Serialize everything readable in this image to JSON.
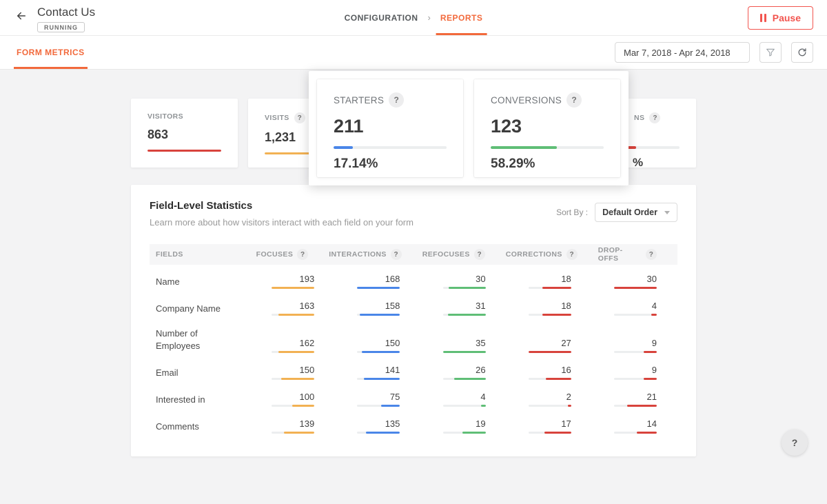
{
  "colors": {
    "accent_orange": "#f2693b",
    "pause_red": "#f2544e",
    "bar_red": "#d8433c",
    "bar_amber": "#f2b153",
    "bar_blue": "#4a86e8",
    "bar_green": "#5fbe76"
  },
  "icons": {
    "back": "arrow-left",
    "breadcrumb_separator": "chevron-right",
    "pause": "pause-bars",
    "filter": "funnel",
    "refresh": "refresh-arrow",
    "sort_caret": "caret-down",
    "help": "?"
  },
  "header": {
    "title": "Contact Us",
    "status_badge": "RUNNING",
    "breadcrumb": [
      {
        "label": "CONFIGURATION",
        "active": false
      },
      {
        "label": "REPORTS",
        "active": true
      }
    ],
    "pause_button": "Pause"
  },
  "toolbar": {
    "tab": "FORM METRICS",
    "date_range": "Mar 7, 2018 - Apr 24, 2018"
  },
  "stat_cards": {
    "visitors": {
      "label": "VISITORS",
      "value": "863",
      "has_help": false,
      "bar_color": "#d8433c",
      "bar_fill": 1
    },
    "visits": {
      "label": "VISITS",
      "value": "1,231",
      "has_help": true,
      "bar_color": "#f2b153",
      "bar_fill": 1
    },
    "partial": {
      "label_fragment": "NS",
      "percent_fragment": "%",
      "has_help": true,
      "bar_color": "#d8433c",
      "bar_fill": 0.41
    }
  },
  "popover_cards": [
    {
      "label": "STARTERS",
      "value": "211",
      "percent": "17.14%",
      "bar_color": "#4a86e8",
      "bar_fill": 0.1714
    },
    {
      "label": "CONVERSIONS",
      "value": "123",
      "percent": "58.29%",
      "bar_color": "#5fbe76",
      "bar_fill": 0.5829
    }
  ],
  "field_stats": {
    "title": "Field-Level Statistics",
    "subtitle": "Learn more about how visitors interact with each field on your form",
    "sort_by_label": "Sort By :",
    "sort_by_value": "Default Order",
    "columns": [
      {
        "label": "FIELDS",
        "help": false
      },
      {
        "label": "FOCUSES",
        "help": true
      },
      {
        "label": "INTERACTIONS",
        "help": true
      },
      {
        "label": "REFOCUSES",
        "help": true
      },
      {
        "label": "CORRECTIONS",
        "help": true
      },
      {
        "label": "DROP-OFFS",
        "help": true
      }
    ],
    "column_colors": [
      "#f2b153",
      "#4a86e8",
      "#5fbe76",
      "#d8433c",
      "#d8433c"
    ],
    "rows": [
      {
        "field": "Name",
        "values": [
          193,
          168,
          30,
          18,
          30
        ]
      },
      {
        "field": "Company Name",
        "values": [
          163,
          158,
          31,
          18,
          4
        ]
      },
      {
        "field": "Number of Employees",
        "values": [
          162,
          150,
          35,
          27,
          9
        ]
      },
      {
        "field": "Email",
        "values": [
          150,
          141,
          26,
          16,
          9
        ]
      },
      {
        "field": "Interested in",
        "values": [
          100,
          75,
          4,
          2,
          21
        ]
      },
      {
        "field": "Comments",
        "values": [
          139,
          135,
          19,
          17,
          14
        ]
      }
    ]
  },
  "help_button": "?"
}
